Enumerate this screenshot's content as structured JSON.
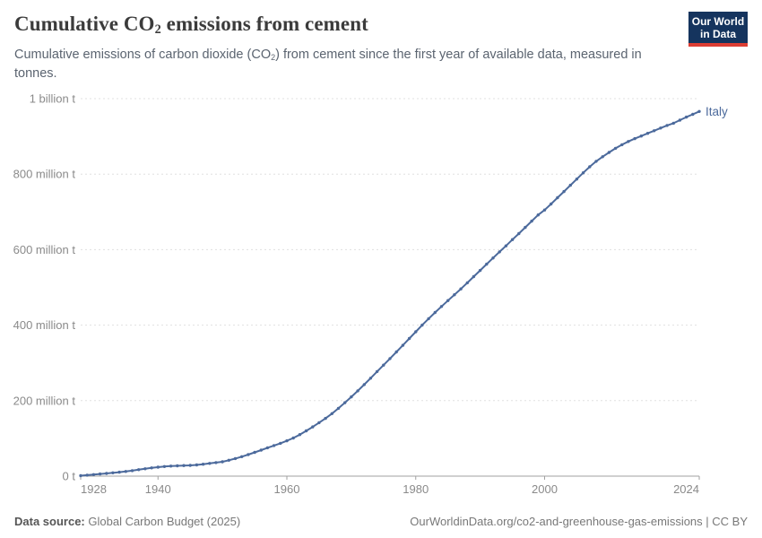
{
  "header": {
    "title": {
      "pre": "Cumulative CO",
      "sub": "2",
      "post": " emissions from cement"
    },
    "subtitle": {
      "pre": "Cumulative emissions of carbon dioxide (CO",
      "sub": "2",
      "post": ") from cement since the first year of available data, measured in tonnes."
    },
    "logo": {
      "line1": "Our World",
      "line2": "in Data"
    }
  },
  "footer": {
    "source_label": "Data source:",
    "source_value": "Global Carbon Budget (2025)",
    "credit": "OurWorldinData.org/co2-and-greenhouse-gas-emissions | CC BY"
  },
  "colors": {
    "line": "#4C6A9C",
    "axis": "#a1a1a1",
    "gridline": "#e0e0e0",
    "tick_text": "#8a8a8a",
    "logo_bg": "#15345E",
    "logo_accent": "#DC3D33"
  },
  "chart_data": {
    "type": "line",
    "title": "Cumulative CO₂ emissions from cement",
    "unit": "tonnes of CO₂ (values stored in million tonnes)",
    "xlabel": "",
    "ylabel": "",
    "xlim": [
      1928,
      2024
    ],
    "ylim_million_t": [
      0,
      1000
    ],
    "x_ticks": [
      1928,
      1940,
      1960,
      1980,
      2000,
      2024
    ],
    "y_ticks": [
      {
        "value": 0,
        "label": "0 t"
      },
      {
        "value": 200,
        "label": "200 million t"
      },
      {
        "value": 400,
        "label": "400 million t"
      },
      {
        "value": 600,
        "label": "600 million t"
      },
      {
        "value": 800,
        "label": "800 million t"
      },
      {
        "value": 1000,
        "label": "1 billion t"
      }
    ],
    "grid": "horizontal-dashed",
    "legend_position": "end-of-line-label",
    "marker": "point-per-year",
    "series": [
      {
        "name": "Italy",
        "color": "#4C6A9C",
        "start_year": 1928,
        "end_year": 2024,
        "values_million_t": [
          1.2,
          2.6,
          4.1,
          5.6,
          7.1,
          8.7,
          10.4,
          12.3,
          14.5,
          17,
          19.5,
          21.8,
          23.8,
          25.3,
          26.5,
          27.4,
          28,
          28.6,
          29.8,
          31.5,
          33.8,
          35.8,
          38,
          42,
          46.5,
          51.5,
          57,
          63,
          69,
          75,
          81,
          87,
          93.5,
          101,
          110,
          120,
          130.5,
          141.5,
          153,
          165.5,
          179.5,
          194.5,
          210,
          226,
          242.5,
          259.5,
          277,
          294,
          311.5,
          329,
          346.5,
          364.5,
          382.5,
          400,
          417,
          433.5,
          449.5,
          465,
          480.5,
          496,
          512,
          528.5,
          545,
          561.5,
          578,
          594,
          610,
          626.5,
          642.5,
          659,
          675.5,
          692,
          705,
          721,
          737.5,
          754,
          770.5,
          787,
          803.5,
          819.5,
          834,
          846,
          857.5,
          868.5,
          878,
          886.5,
          894,
          901,
          908,
          915,
          922,
          929,
          935,
          943,
          951,
          958.5,
          966
        ]
      }
    ]
  }
}
